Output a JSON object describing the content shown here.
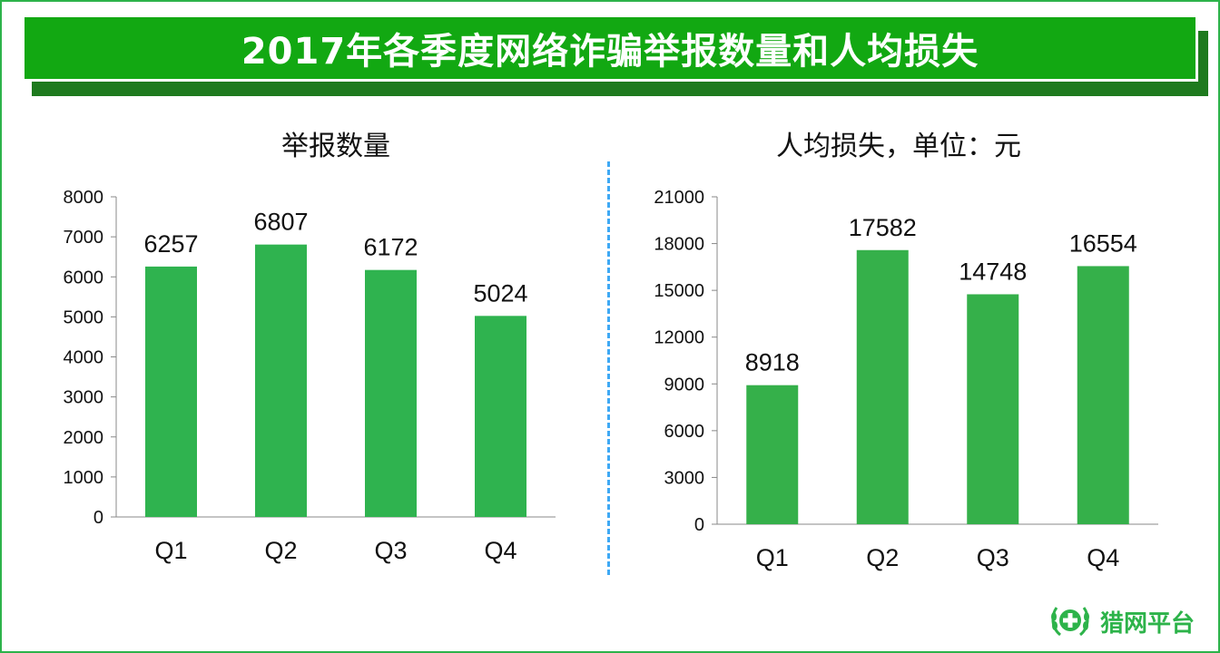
{
  "header": {
    "title": "2017年各季度网络诈骗举报数量和人均损失"
  },
  "logo": {
    "text": "猎网平台",
    "icon": "shield-laurel-icon"
  },
  "colors": {
    "banner": "#12a812",
    "bar_left": "#2fb34f",
    "bar_right": "#35b04a",
    "divider": "#3fa9f5"
  },
  "chart_data": [
    {
      "type": "bar",
      "title": "举报数量",
      "categories": [
        "Q1",
        "Q2",
        "Q3",
        "Q4"
      ],
      "values": [
        6257,
        6807,
        6172,
        5024
      ],
      "ylim": [
        0,
        8000
      ],
      "yticks": [
        0,
        1000,
        2000,
        3000,
        4000,
        5000,
        6000,
        7000,
        8000
      ],
      "grid": false,
      "data_labels": true
    },
    {
      "type": "bar",
      "title": "人均损失，单位：元",
      "categories": [
        "Q1",
        "Q2",
        "Q3",
        "Q4"
      ],
      "values": [
        8918,
        17582,
        14748,
        16554
      ],
      "ylim": [
        0,
        21000
      ],
      "yticks": [
        0,
        3000,
        6000,
        9000,
        12000,
        15000,
        18000,
        21000
      ],
      "grid": false,
      "data_labels": true
    }
  ]
}
